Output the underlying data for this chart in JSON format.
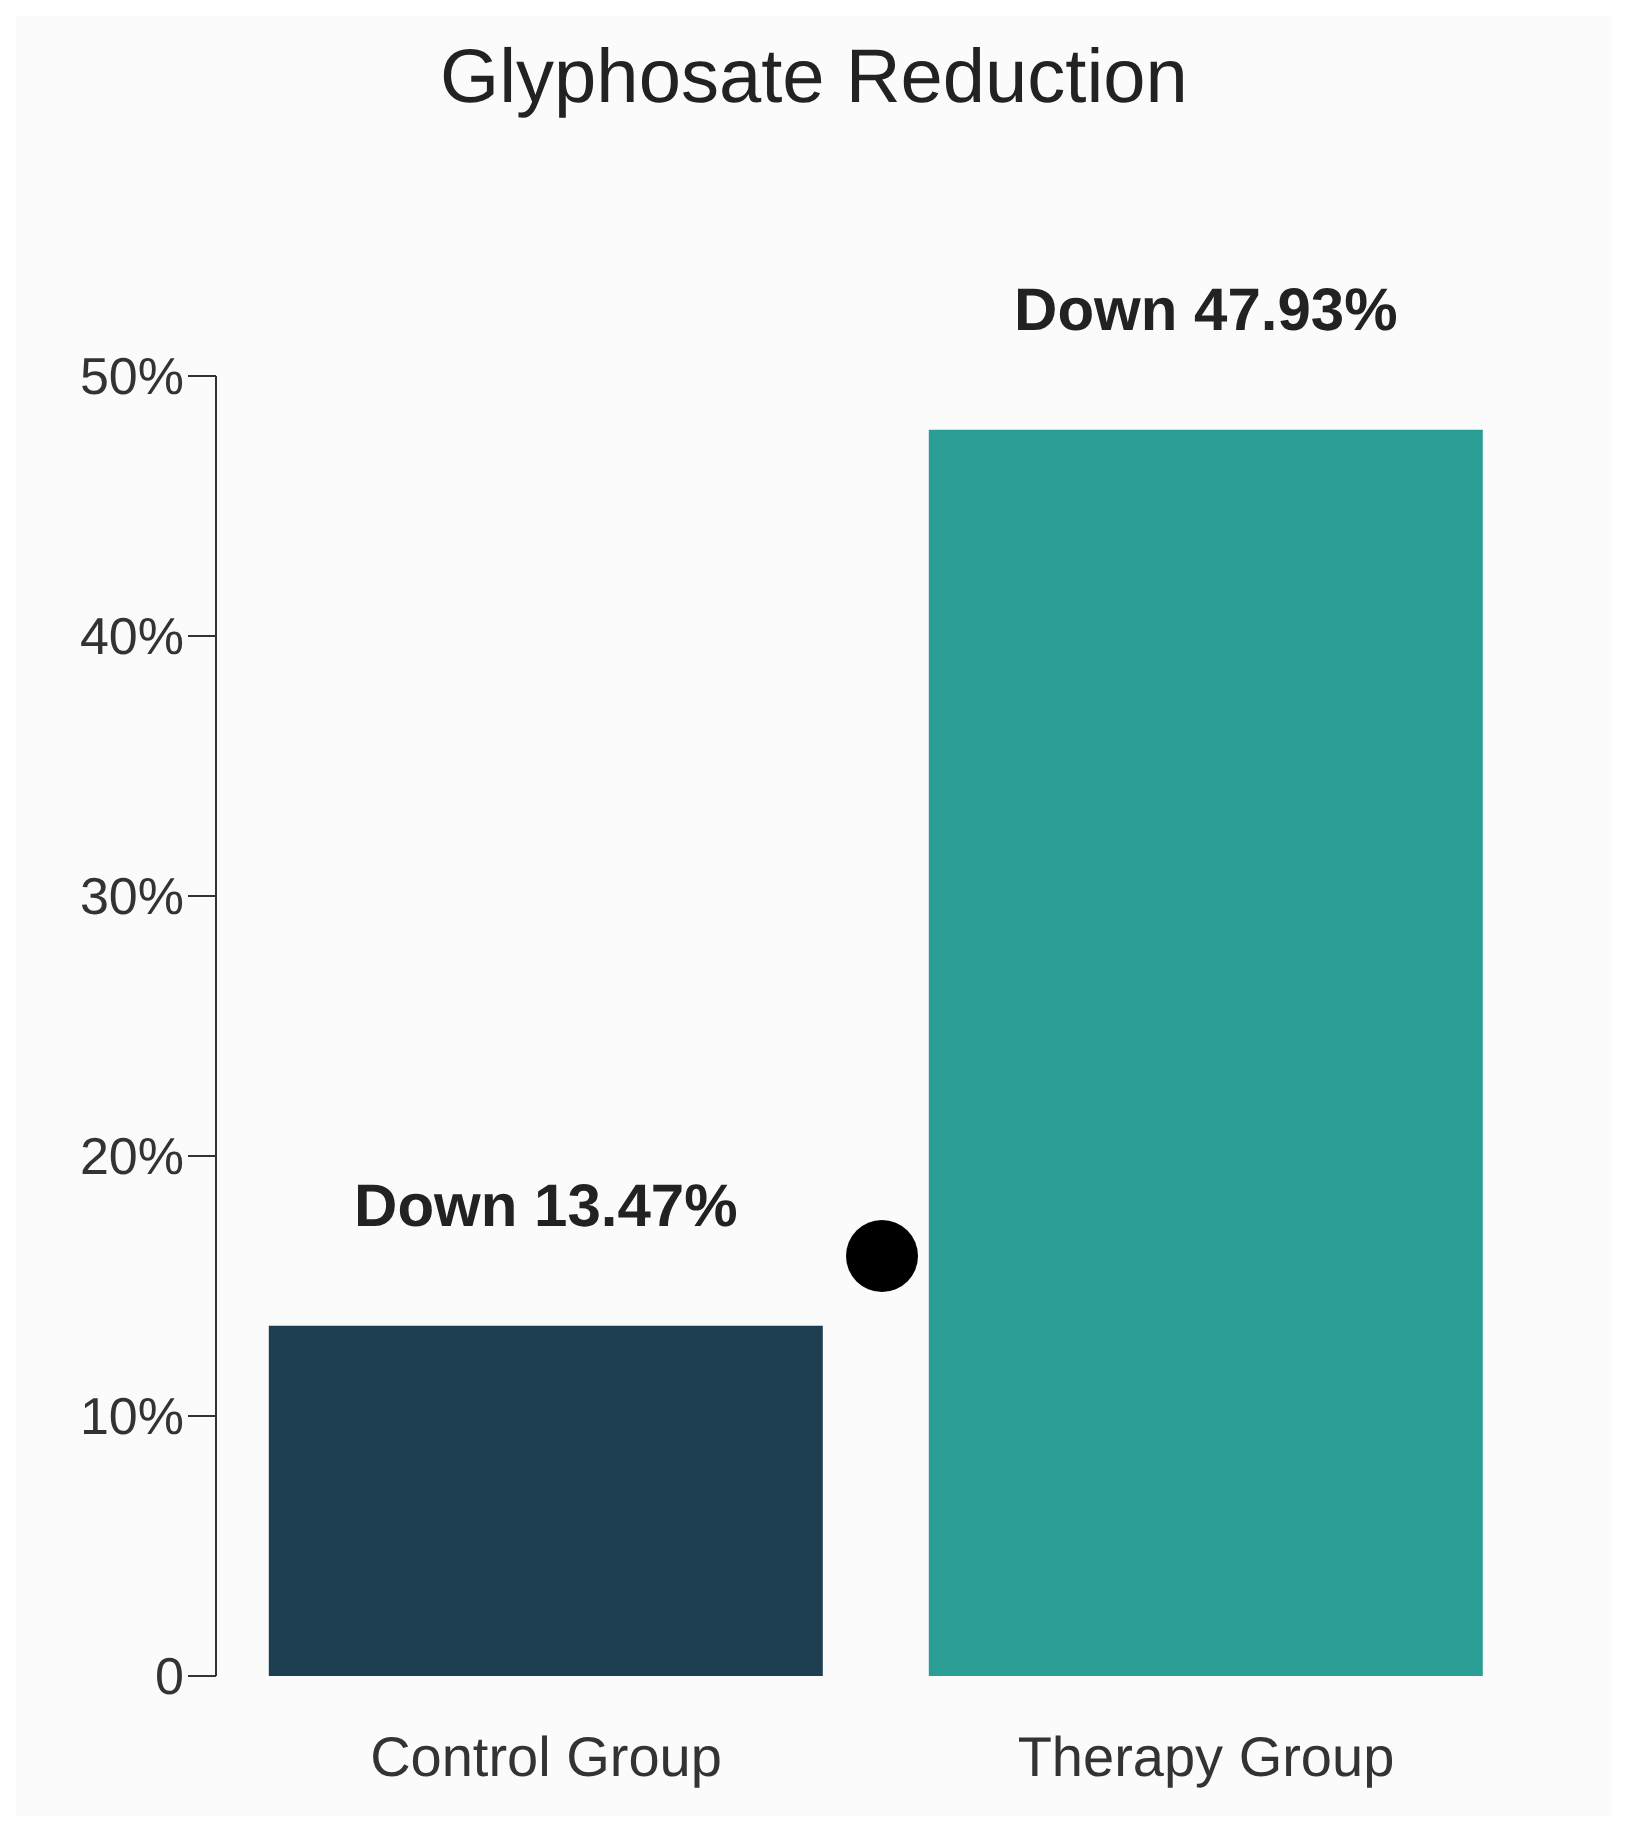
{
  "chart_data": {
    "type": "bar",
    "title": "Glyphosate Reduction",
    "categories": [
      "Control Group",
      "Therapy Group"
    ],
    "values": [
      13.47,
      47.93
    ],
    "colors": [
      "#1e3f52",
      "#2a9d94"
    ],
    "value_labels": [
      "Down 13.47%",
      "Down 47.93%"
    ],
    "ylim": [
      0,
      50
    ],
    "yticks": [
      {
        "value": 0,
        "label": "0"
      },
      {
        "value": 10,
        "label": "10%"
      },
      {
        "value": 20,
        "label": "20%"
      },
      {
        "value": 30,
        "label": "30%"
      },
      {
        "value": 40,
        "label": "40%"
      },
      {
        "value": 50,
        "label": "50%"
      }
    ],
    "grid": false,
    "legend": false
  }
}
